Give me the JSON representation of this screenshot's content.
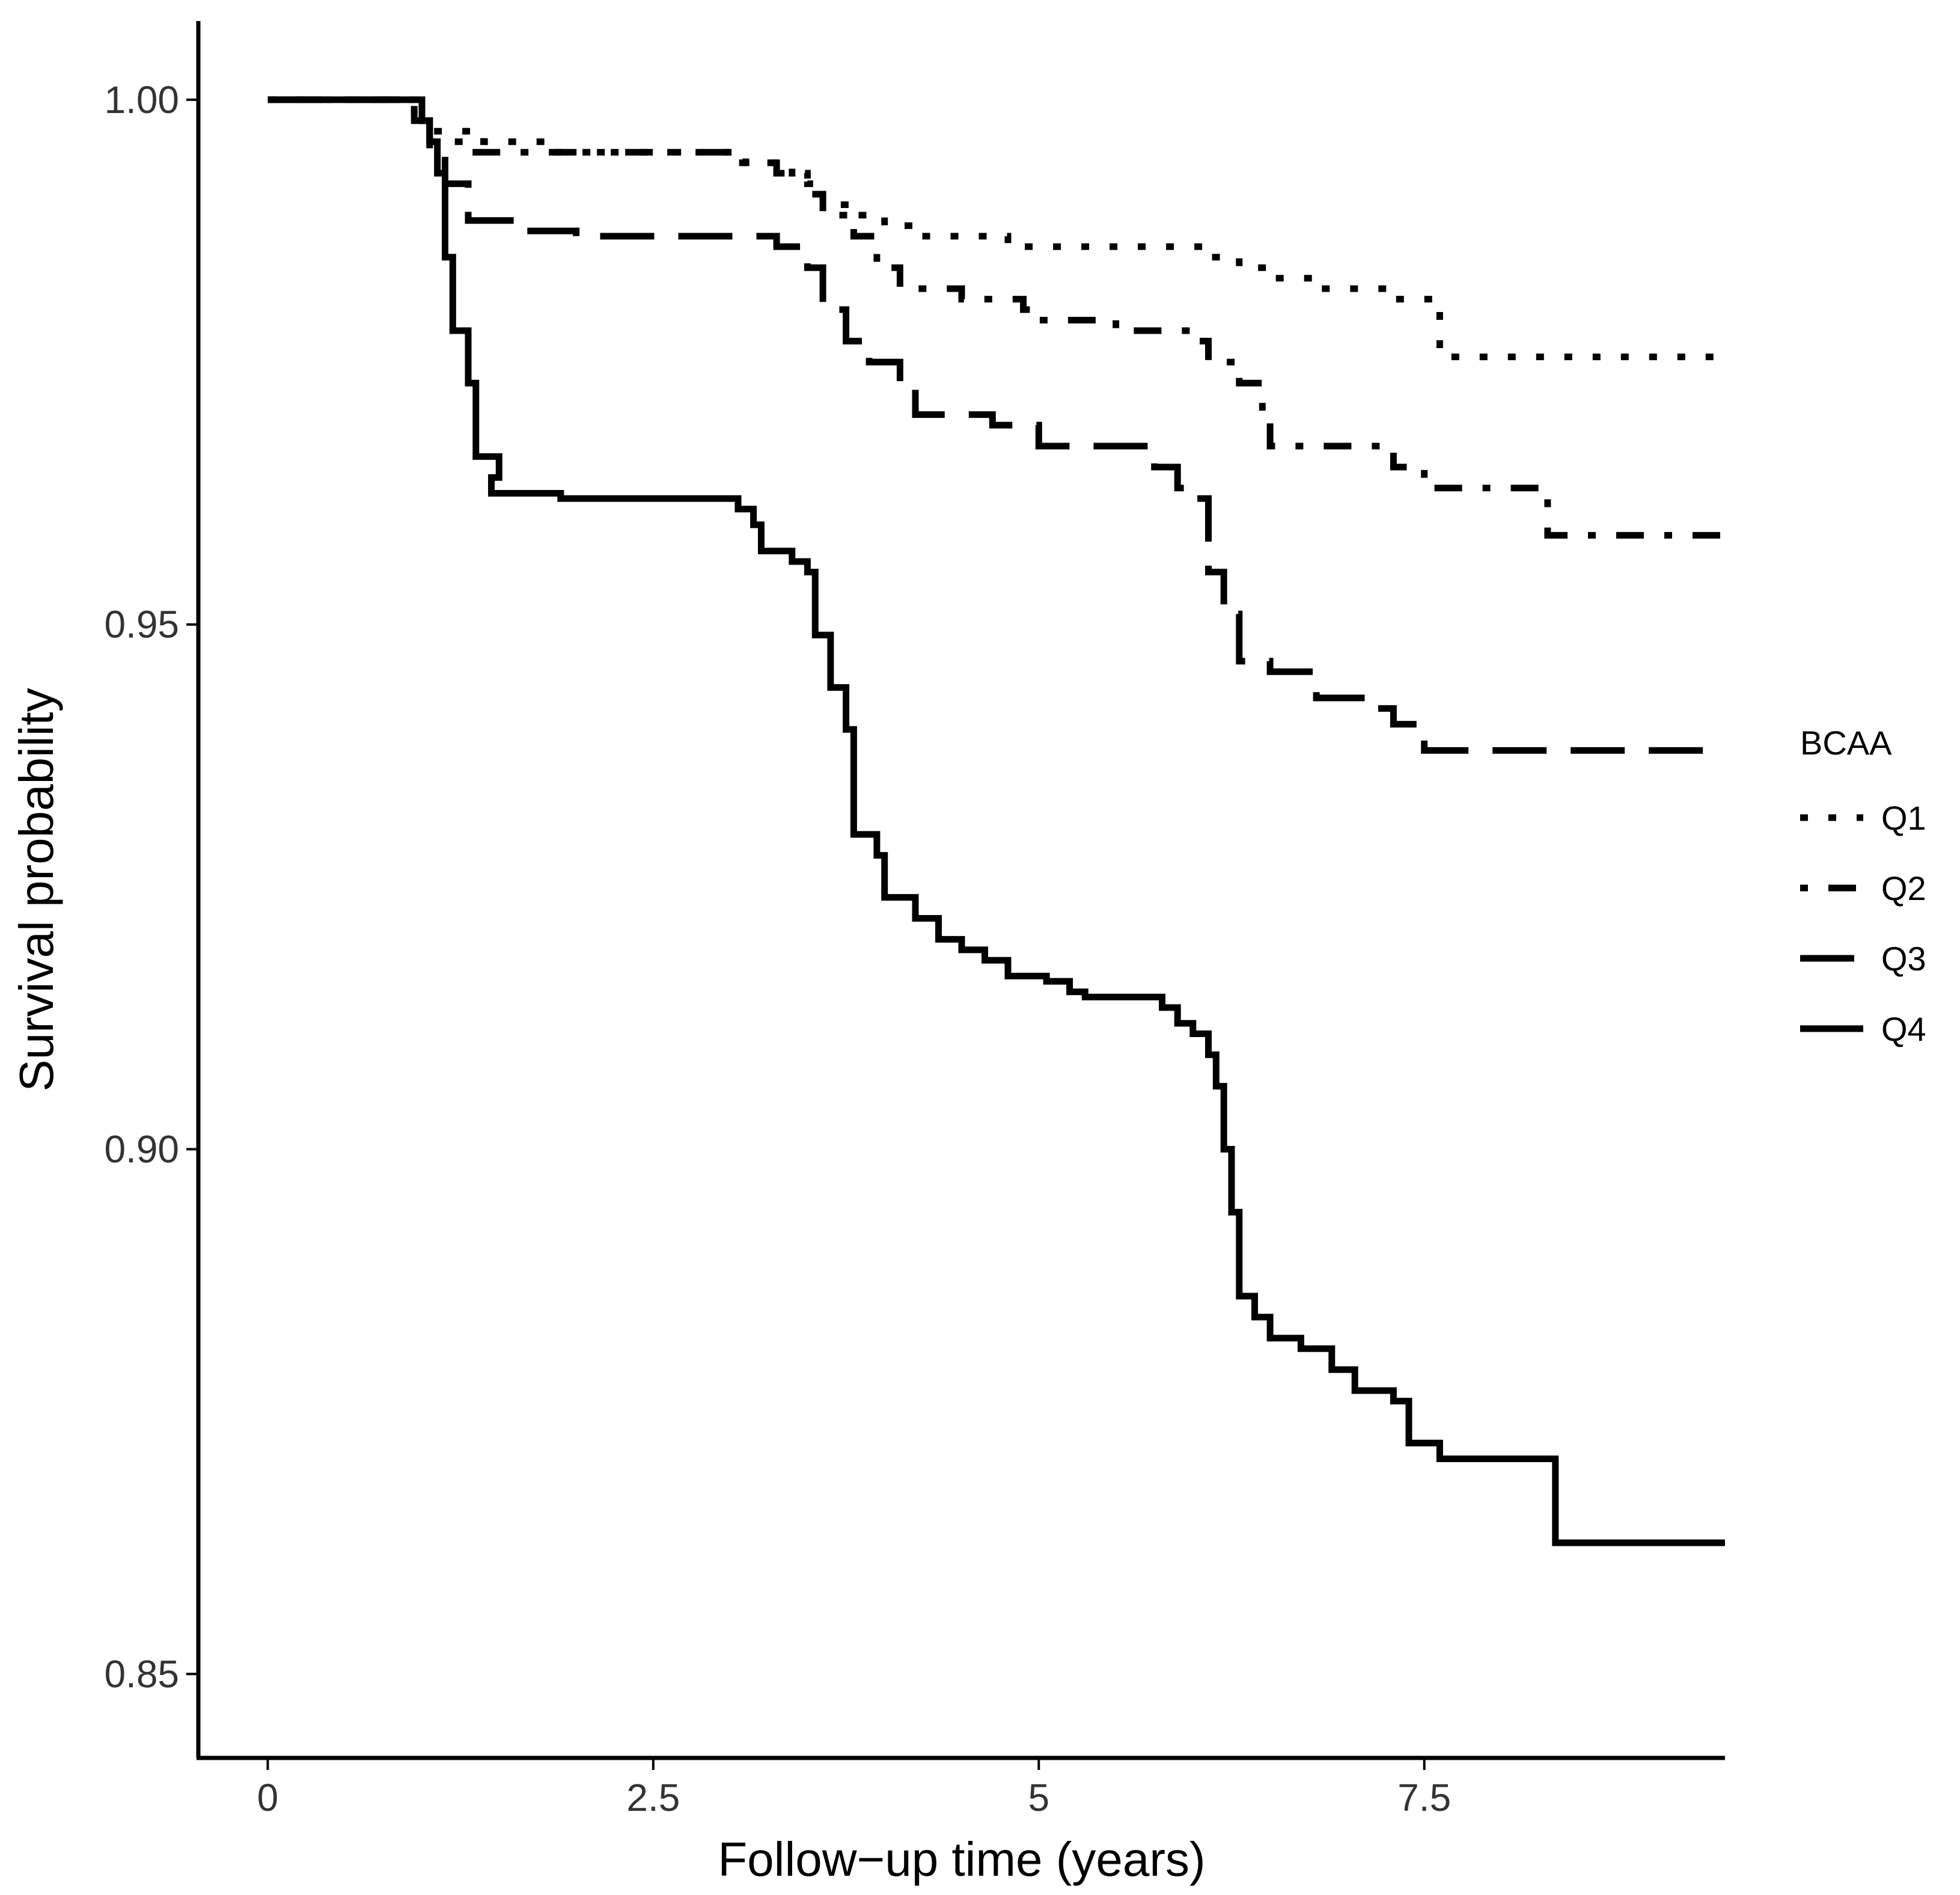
{
  "chart_data": {
    "type": "line",
    "title": "",
    "xlabel": "Follow−up time (years)",
    "ylabel": "Survival probability",
    "xlim": [
      -0.45,
      9.45
    ],
    "ylim": [
      0.842,
      1.0075
    ],
    "x_ticks": [
      0,
      2.5,
      5,
      7.5
    ],
    "x_tick_labels": [
      "0",
      "2.5",
      "5",
      "7.5"
    ],
    "y_ticks": [
      0.85,
      0.9,
      0.95,
      1.0
    ],
    "y_tick_labels": [
      "0.85",
      "0.90",
      "0.95",
      "1.00"
    ],
    "grid": false,
    "legend": {
      "title": "BCAA",
      "position": "right"
    },
    "series": [
      {
        "name": "Q1",
        "linestyle": "dotted",
        "points": [
          [
            0,
            1.0
          ],
          [
            0.9,
            1.0
          ],
          [
            0.95,
            0.999
          ],
          [
            1.0,
            0.998
          ],
          [
            1.1,
            0.997
          ],
          [
            1.4,
            0.996
          ],
          [
            1.8,
            0.995
          ],
          [
            2.2,
            0.995
          ],
          [
            2.8,
            0.995
          ],
          [
            3.1,
            0.994
          ],
          [
            3.4,
            0.993
          ],
          [
            3.5,
            0.992
          ],
          [
            3.6,
            0.99
          ],
          [
            3.8,
            0.989
          ],
          [
            4.0,
            0.988
          ],
          [
            4.2,
            0.987
          ],
          [
            4.8,
            0.986
          ],
          [
            5.3,
            0.986
          ],
          [
            6.1,
            0.985
          ],
          [
            6.3,
            0.984
          ],
          [
            6.5,
            0.983
          ],
          [
            6.8,
            0.982
          ],
          [
            7.3,
            0.981
          ],
          [
            7.6,
            0.9755
          ],
          [
            9.45,
            0.9755
          ]
        ]
      },
      {
        "name": "Q2",
        "linestyle": "dash-dot",
        "points": [
          [
            0,
            1.0
          ],
          [
            0.9,
            1.0
          ],
          [
            0.95,
            0.998
          ],
          [
            1.05,
            0.996
          ],
          [
            1.3,
            0.995
          ],
          [
            1.8,
            0.995
          ],
          [
            2.5,
            0.995
          ],
          [
            3.0,
            0.994
          ],
          [
            3.3,
            0.993
          ],
          [
            3.5,
            0.991
          ],
          [
            3.6,
            0.989
          ],
          [
            3.8,
            0.987
          ],
          [
            3.95,
            0.984
          ],
          [
            4.1,
            0.982
          ],
          [
            4.5,
            0.981
          ],
          [
            4.9,
            0.98
          ],
          [
            5.0,
            0.979
          ],
          [
            5.5,
            0.978
          ],
          [
            6.0,
            0.977
          ],
          [
            6.1,
            0.975
          ],
          [
            6.3,
            0.973
          ],
          [
            6.45,
            0.97
          ],
          [
            6.5,
            0.967
          ],
          [
            7.0,
            0.967
          ],
          [
            7.3,
            0.965
          ],
          [
            7.5,
            0.963
          ],
          [
            8.2,
            0.963
          ],
          [
            8.3,
            0.9585
          ],
          [
            9.45,
            0.9585
          ]
        ]
      },
      {
        "name": "Q3",
        "linestyle": "long-dash",
        "points": [
          [
            0,
            1.0
          ],
          [
            0.9,
            1.0
          ],
          [
            0.95,
            0.998
          ],
          [
            1.05,
            0.995
          ],
          [
            1.15,
            0.992
          ],
          [
            1.3,
            0.9885
          ],
          [
            1.6,
            0.9875
          ],
          [
            2.0,
            0.987
          ],
          [
            3.1,
            0.987
          ],
          [
            3.3,
            0.986
          ],
          [
            3.5,
            0.984
          ],
          [
            3.6,
            0.98
          ],
          [
            3.75,
            0.977
          ],
          [
            3.9,
            0.975
          ],
          [
            4.1,
            0.973
          ],
          [
            4.2,
            0.97
          ],
          [
            4.7,
            0.969
          ],
          [
            5.0,
            0.967
          ],
          [
            5.6,
            0.967
          ],
          [
            5.75,
            0.965
          ],
          [
            5.9,
            0.963
          ],
          [
            6.0,
            0.962
          ],
          [
            6.1,
            0.955
          ],
          [
            6.2,
            0.951
          ],
          [
            6.3,
            0.9465
          ],
          [
            6.5,
            0.9455
          ],
          [
            6.8,
            0.943
          ],
          [
            7.2,
            0.942
          ],
          [
            7.3,
            0.9405
          ],
          [
            7.5,
            0.938
          ],
          [
            9.45,
            0.938
          ]
        ]
      },
      {
        "name": "Q4",
        "linestyle": "solid",
        "points": [
          [
            0,
            1.0
          ],
          [
            0.9,
            1.0
          ],
          [
            1.0,
            0.998
          ],
          [
            1.05,
            0.996
          ],
          [
            1.1,
            0.993
          ],
          [
            1.15,
            0.985
          ],
          [
            1.2,
            0.978
          ],
          [
            1.3,
            0.973
          ],
          [
            1.35,
            0.966
          ],
          [
            1.5,
            0.964
          ],
          [
            1.45,
            0.9625
          ],
          [
            1.9,
            0.962
          ],
          [
            2.7,
            0.962
          ],
          [
            3.05,
            0.961
          ],
          [
            3.15,
            0.9595
          ],
          [
            3.2,
            0.957
          ],
          [
            3.4,
            0.956
          ],
          [
            3.5,
            0.955
          ],
          [
            3.55,
            0.949
          ],
          [
            3.65,
            0.944
          ],
          [
            3.75,
            0.94
          ],
          [
            3.8,
            0.93
          ],
          [
            3.95,
            0.928
          ],
          [
            4.0,
            0.924
          ],
          [
            4.2,
            0.922
          ],
          [
            4.35,
            0.92
          ],
          [
            4.5,
            0.919
          ],
          [
            4.65,
            0.918
          ],
          [
            4.8,
            0.9165
          ],
          [
            5.05,
            0.916
          ],
          [
            5.2,
            0.915
          ],
          [
            5.3,
            0.9145
          ],
          [
            5.6,
            0.9145
          ],
          [
            5.8,
            0.9135
          ],
          [
            5.9,
            0.912
          ],
          [
            6.0,
            0.911
          ],
          [
            6.1,
            0.909
          ],
          [
            6.15,
            0.906
          ],
          [
            6.2,
            0.9
          ],
          [
            6.25,
            0.894
          ],
          [
            6.3,
            0.886
          ],
          [
            6.4,
            0.884
          ],
          [
            6.5,
            0.882
          ],
          [
            6.7,
            0.881
          ],
          [
            6.9,
            0.879
          ],
          [
            7.05,
            0.877
          ],
          [
            7.3,
            0.876
          ],
          [
            7.4,
            0.872
          ],
          [
            7.6,
            0.8705
          ],
          [
            8.3,
            0.8705
          ],
          [
            8.35,
            0.8625
          ],
          [
            9.45,
            0.8625
          ]
        ]
      }
    ]
  }
}
